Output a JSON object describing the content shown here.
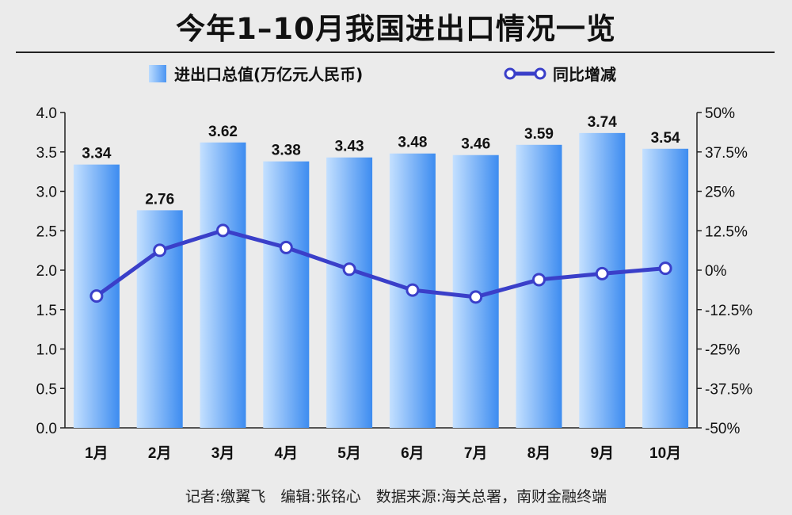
{
  "title": "今年1–10月我国进出口情况一览",
  "legend": {
    "bar_label": "进出口总值(万亿元人民币)",
    "line_label": "同比增减"
  },
  "footer": "记者:缴翼飞　编辑:张铭心　数据来源:海关总署，南财金融终端",
  "colors": {
    "bar_light": "#c4e0ff",
    "bar_dark": "#3d8cf0",
    "line": "#3a3fc9",
    "marker_fill": "#ffffff",
    "background": "#ebebeb"
  },
  "chart_data": {
    "type": "bar",
    "categories": [
      "1月",
      "2月",
      "3月",
      "4月",
      "5月",
      "6月",
      "7月",
      "8月",
      "9月",
      "10月"
    ],
    "series": [
      {
        "name": "进出口总值(万亿元人民币)",
        "type": "bar",
        "axis": "left",
        "values": [
          3.34,
          2.76,
          3.62,
          3.38,
          3.43,
          3.48,
          3.46,
          3.59,
          3.74,
          3.54
        ],
        "data_labels": [
          "3.34",
          "2.76",
          "3.62",
          "3.38",
          "3.43",
          "3.48",
          "3.46",
          "3.59",
          "3.74",
          "3.54"
        ]
      },
      {
        "name": "同比增减",
        "type": "line",
        "axis": "right",
        "values": [
          -8.2,
          6.3,
          12.6,
          7.2,
          0.3,
          -6.3,
          -8.5,
          -3.0,
          -1.1,
          0.6
        ]
      }
    ],
    "y_left": {
      "ylim": [
        0,
        4.0
      ],
      "ticks": [
        0,
        0.5,
        1.0,
        1.5,
        2.0,
        2.5,
        3.0,
        3.5,
        4.0
      ],
      "tick_labels": [
        "0.0",
        "0.5",
        "1.0",
        "1.5",
        "2.0",
        "2.5",
        "3.0",
        "3.5",
        "4.0"
      ]
    },
    "y_right": {
      "ylim": [
        -50,
        50
      ],
      "ticks": [
        -50,
        -37.5,
        -25,
        -12.5,
        0,
        12.5,
        25,
        37.5,
        50
      ],
      "tick_labels": [
        "-50%",
        "-37.5%",
        "-25%",
        "-12.5%",
        "0%",
        "12.5%",
        "25%",
        "37.5%",
        "50%"
      ]
    },
    "grid": false,
    "legend_position": "top"
  }
}
